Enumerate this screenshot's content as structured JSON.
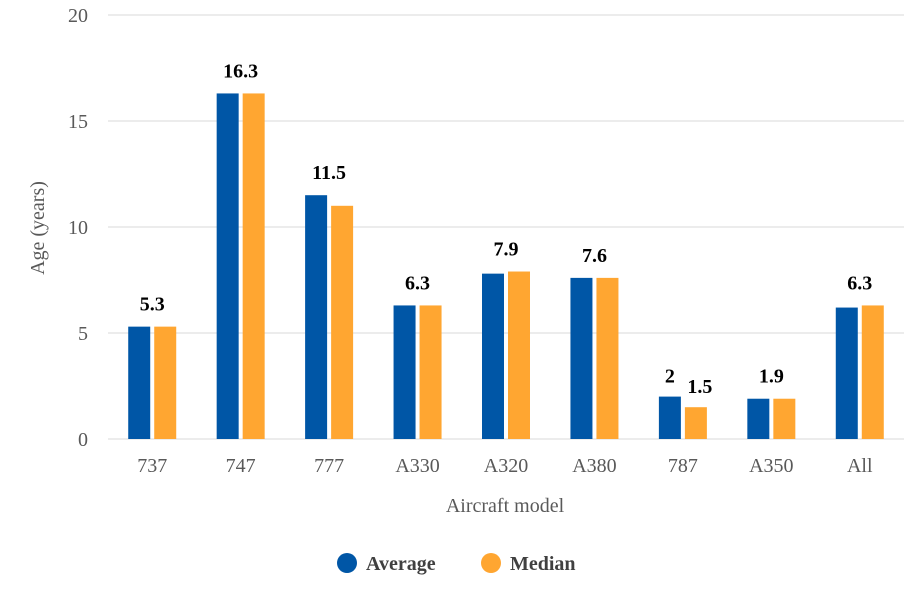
{
  "chart_data": {
    "type": "bar",
    "categories": [
      "737",
      "747",
      "777",
      "A330",
      "A320",
      "A380",
      "787",
      "A350",
      "All"
    ],
    "series": [
      {
        "name": "Average",
        "values": [
          5.3,
          16.3,
          11.5,
          6.3,
          7.8,
          7.6,
          2.0,
          1.9,
          6.2
        ]
      },
      {
        "name": "Median",
        "values": [
          5.3,
          16.3,
          11.0,
          6.3,
          7.9,
          7.6,
          1.5,
          1.9,
          6.3
        ]
      }
    ],
    "data_labels": [
      {
        "category": "737",
        "text": "5.3"
      },
      {
        "category": "747",
        "text": "16.3"
      },
      {
        "category": "777",
        "text": "11.5"
      },
      {
        "category": "A330",
        "text": "6.3"
      },
      {
        "category": "A320",
        "text": "7.9"
      },
      {
        "category": "A380",
        "text": "7.6"
      },
      {
        "category": "787",
        "text": "2"
      },
      {
        "category": "787",
        "text": "1.5"
      },
      {
        "category": "A350",
        "text": "1.9"
      },
      {
        "category": "All",
        "text": "6.3"
      }
    ],
    "xlabel": "Aircraft model",
    "ylabel": "Age (years)",
    "ylim": [
      0,
      20
    ],
    "yticks": [
      "0",
      "5",
      "10",
      "15",
      "20"
    ],
    "grid": true,
    "legend_position": "bottom",
    "colors": {
      "Average": "#0056a6",
      "Median": "#ffa631",
      "grid": "#d9d9d9"
    }
  }
}
